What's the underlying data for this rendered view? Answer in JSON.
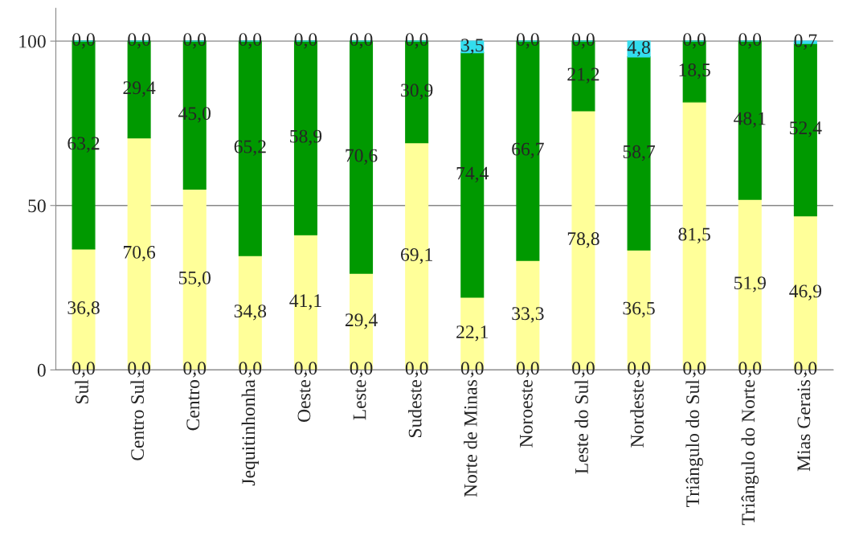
{
  "chart_data": {
    "type": "bar",
    "stacked": true,
    "categories": [
      "Sul",
      "Centro Sul",
      "Centro",
      "Jequitinhonha",
      "Oeste",
      "Leste",
      "Sudeste",
      "Norte de Minas",
      "Noroeste",
      "Leste do Sul",
      "Nordeste",
      "Triângulo do Sul",
      "Triângulo do Norte",
      "Mias Gerais"
    ],
    "series": [
      {
        "color": "#ffff99",
        "values": [
          36.8,
          70.6,
          55.0,
          34.8,
          41.1,
          29.4,
          69.1,
          22.1,
          33.3,
          78.8,
          36.5,
          81.5,
          51.9,
          46.9
        ],
        "value_labels": [
          "36,8",
          "70,6",
          "55,0",
          "34,8",
          "41,1",
          "29,4",
          "69,1",
          "22,1",
          "33,3",
          "78,8",
          "36,5",
          "81,5",
          "51,9",
          "46,9"
        ]
      },
      {
        "color": "#009900",
        "values": [
          63.2,
          29.4,
          45.0,
          65.2,
          58.9,
          70.6,
          30.9,
          74.4,
          66.7,
          21.2,
          58.7,
          18.5,
          48.1,
          52.4
        ],
        "value_labels": [
          "63,2",
          "29,4",
          "45,0",
          "65,2",
          "58,9",
          "70,6",
          "30,9",
          "74,4",
          "66,7",
          "21,2",
          "58,7",
          "18,5",
          "48,1",
          "52,4"
        ]
      },
      {
        "color": "#33ddee",
        "values": [
          0,
          0,
          0,
          0,
          0,
          0,
          0,
          3.5,
          0,
          0,
          4.8,
          0,
          0,
          0.7
        ],
        "value_labels": [
          "0,0",
          "0,0",
          "0,0",
          "0,0",
          "0,0",
          "0,0",
          "0,0",
          "3,5",
          "0,0",
          "0,0",
          "4,8",
          "0,0",
          "0,0",
          "0,7"
        ]
      }
    ],
    "annotations": [
      {
        "text": "0,0",
        "x": "Sul",
        "y": 0
      },
      {
        "text": "0,0",
        "x": "Centro Sul",
        "y": 0
      },
      {
        "text": "0,0",
        "x": "Centro",
        "y": 0
      },
      {
        "text": "0,0",
        "x": "Jequitinhonha",
        "y": 0
      },
      {
        "text": "0,0",
        "x": "Oeste",
        "y": 0
      },
      {
        "text": "0,0",
        "x": "Leste",
        "y": 0
      },
      {
        "text": "0,0",
        "x": "Sudeste",
        "y": 0
      },
      {
        "text": "0,0",
        "x": "Norte de Minas",
        "y": 0
      },
      {
        "text": "0,0",
        "x": "Noroeste",
        "y": 0
      },
      {
        "text": "0,0",
        "x": "Leste do Sul",
        "y": 0
      },
      {
        "text": "0,0",
        "x": "Nordeste",
        "y": 0
      },
      {
        "text": "0,0",
        "x": "Triângulo do Sul",
        "y": 0
      },
      {
        "text": "0,0",
        "x": "Triângulo do Norte",
        "y": 0
      },
      {
        "text": "0,0",
        "x": "Mias Gerais",
        "y": 0
      }
    ],
    "ylim": [
      0,
      110
    ],
    "yticks": [
      0,
      50,
      100
    ],
    "grid": "y",
    "legend": false
  }
}
